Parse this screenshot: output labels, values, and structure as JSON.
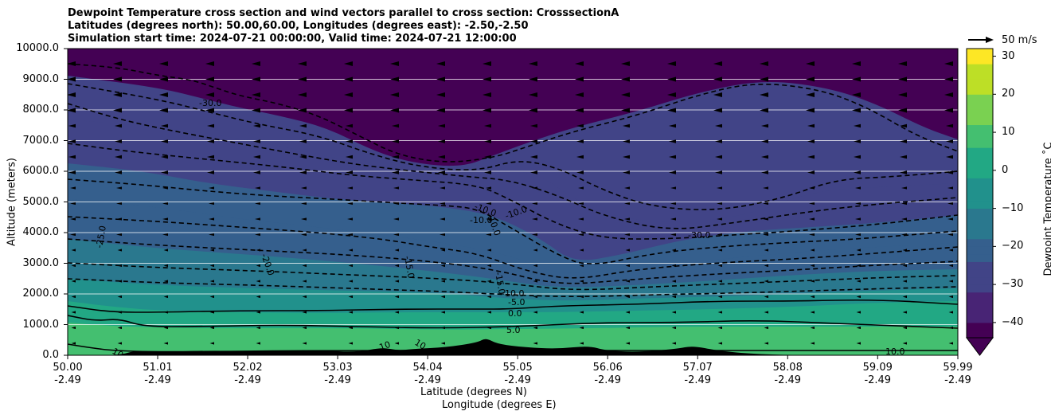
{
  "title": {
    "line1": "Dewpoint Temperature cross section and wind vectors parallel to cross section: CrosssectionA",
    "line2": "Latitudes (degrees north): 50.00,60.00, Longitudes (degrees east): -2.50,-2.50",
    "line3": "Simulation start time: 2024-07-21 00:00:00, Valid time: 2024-07-21 12:00:00"
  },
  "chart_data": {
    "type": "heatmap",
    "xlabel_lat": "Latitude (degrees N)",
    "xlabel_lon": "Longitude (degrees E)",
    "ylabel": "Altitude (meters)",
    "xlim": [
      50.0,
      59.99
    ],
    "ylim": [
      0,
      10000
    ],
    "x_ticks": [
      {
        "lat": "50.00",
        "lon": "-2.49"
      },
      {
        "lat": "51.01",
        "lon": "-2.49"
      },
      {
        "lat": "52.02",
        "lon": "-2.49"
      },
      {
        "lat": "53.03",
        "lon": "-2.49"
      },
      {
        "lat": "54.04",
        "lon": "-2.49"
      },
      {
        "lat": "55.05",
        "lon": "-2.49"
      },
      {
        "lat": "56.06",
        "lon": "-2.49"
      },
      {
        "lat": "57.07",
        "lon": "-2.49"
      },
      {
        "lat": "58.08",
        "lon": "-2.49"
      },
      {
        "lat": "59.09",
        "lon": "-2.49"
      },
      {
        "lat": "59.99",
        "lon": "-2.49"
      }
    ],
    "y_ticks": [
      "0.0",
      "1000.0",
      "2000.0",
      "3000.0",
      "4000.0",
      "5000.0",
      "6000.0",
      "7000.0",
      "8000.0",
      "9000.0",
      "10000.0"
    ],
    "grid": "horizontal",
    "colorbar": {
      "label": "Dewpoint Temperature $^\\circ$C",
      "label_text": "Dewpoint Temperature ˚C",
      "ticks": [
        "30",
        "20",
        "10",
        "0",
        "−10",
        "−20",
        "−30",
        "−40"
      ],
      "min": -44,
      "max": 32,
      "extend": "min",
      "colors": [
        "#440154",
        "#482475",
        "#414487",
        "#355f8d",
        "#2a788e",
        "#21918c",
        "#22a884",
        "#44bf70",
        "#7ad151",
        "#bddf26",
        "#fde725"
      ]
    },
    "wind_key": {
      "value": 50,
      "label": "50 m/s"
    },
    "contour_labels": [
      "-30.0",
      "-25.0",
      "-20.0",
      "-15.0",
      "-10.0",
      "-5.0",
      "0.0",
      "5.0",
      "10.0"
    ],
    "contour_label_text": {
      "a": "-30.0",
      "b": "-25.0",
      "c": "-20.0",
      "d": "-15.0",
      "e": "-10.0",
      "f": "-10.0",
      "g": "-10.0",
      "h": "-10.0",
      "i": "-15.0",
      "j": "-30.0",
      "k": "-10.0",
      "l": "-5.0",
      "m": "0.0",
      "n": "5.0",
      "o": "10",
      "p": "10",
      "q": "10",
      "r": "10.0"
    },
    "field": {
      "surface_dewpoint_c": 12,
      "dry_upper_dewpoint_c": -44,
      "notes_removed": true
    }
  }
}
